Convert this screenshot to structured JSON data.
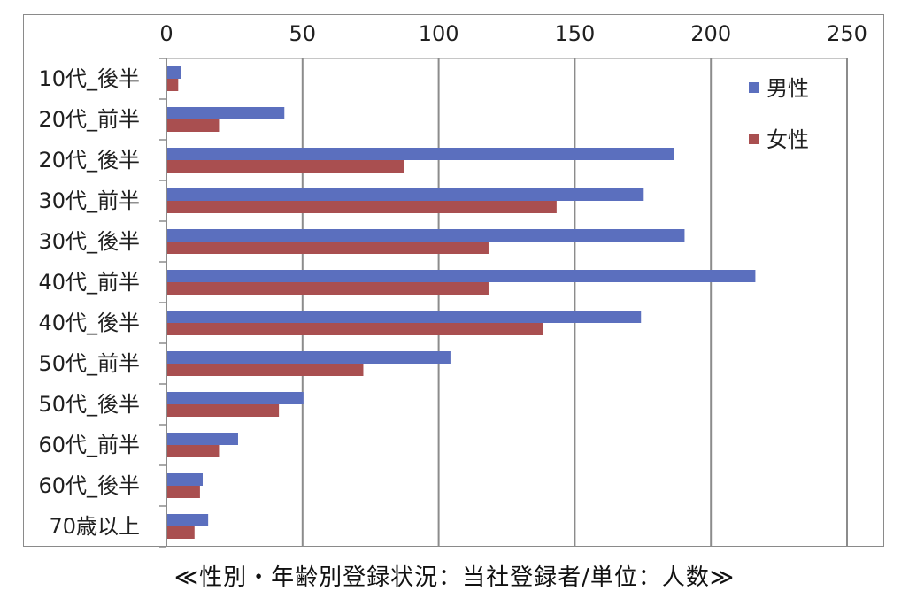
{
  "caption": "≪性別・年齢別登録状況：当社登録者/単位：人数≫",
  "chart_data": {
    "type": "bar",
    "orientation": "horizontal",
    "categories": [
      "10代_後半",
      "20代_前半",
      "20代_後半",
      "30代_前半",
      "30代_後半",
      "40代_前半",
      "40代_後半",
      "50代_前半",
      "50代_後半",
      "60代_前半",
      "60代_後半",
      "70歳以上"
    ],
    "series": [
      {
        "name": "男性",
        "color": "#5b6fbe",
        "values": [
          5,
          43,
          186,
          175,
          190,
          216,
          174,
          104,
          50,
          26,
          13,
          15
        ]
      },
      {
        "name": "女性",
        "color": "#a94f50",
        "values": [
          4,
          19,
          87,
          143,
          118,
          118,
          138,
          72,
          41,
          19,
          12,
          10
        ]
      }
    ],
    "xlim": [
      0,
      250
    ],
    "xticks": [
      0,
      50,
      100,
      150,
      200,
      250
    ],
    "grid": true,
    "legend_position": "top-right"
  }
}
